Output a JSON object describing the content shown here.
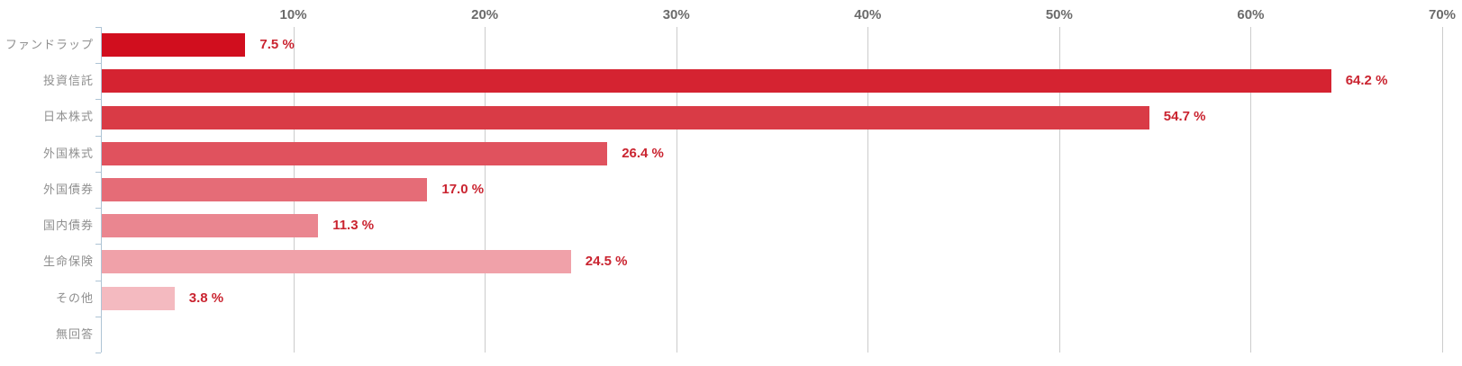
{
  "chart_data": {
    "type": "bar",
    "orientation": "horizontal",
    "title": "",
    "categories": [
      "ファンドラップ",
      "投資信託",
      "日本株式",
      "外国株式",
      "外国債券",
      "国内債券",
      "生命保険",
      "その他",
      "無回答"
    ],
    "values": [
      7.5,
      64.2,
      54.7,
      26.4,
      17.0,
      11.3,
      24.5,
      3.8,
      null
    ],
    "value_labels": [
      "7.5 %",
      "64.2 %",
      "54.7 %",
      "26.4 %",
      "17.0 %",
      "11.3 %",
      "24.5 %",
      "3.8 %",
      ""
    ],
    "x_tick_labels": [
      "10%",
      "20%",
      "30%",
      "40%",
      "50%",
      "60%",
      "70%"
    ],
    "x_tick_values": [
      10,
      20,
      30,
      40,
      50,
      60,
      70
    ],
    "xlim": [
      0,
      70
    ],
    "grid": "vertical",
    "legend": "none",
    "bar_colors": [
      "#d10e1e",
      "#d52331",
      "#d93b46",
      "#e0525e",
      "#e56c77",
      "#ea8690",
      "#f0a1a9",
      "#f4bac0",
      null
    ],
    "colors": {
      "value_label": "#ca2430",
      "category_label": "#8f8f8f",
      "tick_label": "#6b6b6b",
      "axis": "#aec4d5",
      "gridline": "#cccccc",
      "background": "#ffffff"
    }
  }
}
